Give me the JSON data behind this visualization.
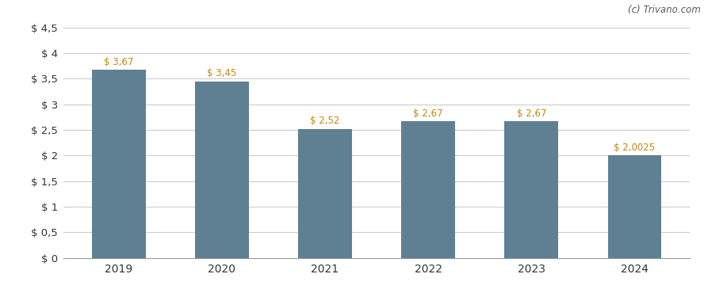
{
  "categories": [
    "2019",
    "2020",
    "2021",
    "2022",
    "2023",
    "2024"
  ],
  "values": [
    3.67,
    3.45,
    2.52,
    2.67,
    2.67,
    2.0025
  ],
  "labels": [
    "$ 3,67",
    "$ 3,45",
    "$ 2,52",
    "$ 2,67",
    "$ 2,67",
    "$ 2,0025"
  ],
  "bar_color": "#5f7f93",
  "background_color": "#ffffff",
  "grid_color": "#cccccc",
  "yticks": [
    0,
    0.5,
    1.0,
    1.5,
    2.0,
    2.5,
    3.0,
    3.5,
    4.0,
    4.5
  ],
  "ytick_labels": [
    "$ 0",
    "$ 0,5",
    "$ 1",
    "$ 1,5",
    "$ 2",
    "$ 2,5",
    "$ 3",
    "$ 3,5",
    "$ 4",
    "$ 4,5"
  ],
  "ylim": [
    0,
    4.75
  ],
  "label_color": "#c8860a",
  "watermark": "(c) Trivano.com",
  "watermark_color": "#5a5a5a",
  "label_fontsize": 8.5,
  "tick_fontsize": 9.5,
  "xtick_fontsize": 10
}
